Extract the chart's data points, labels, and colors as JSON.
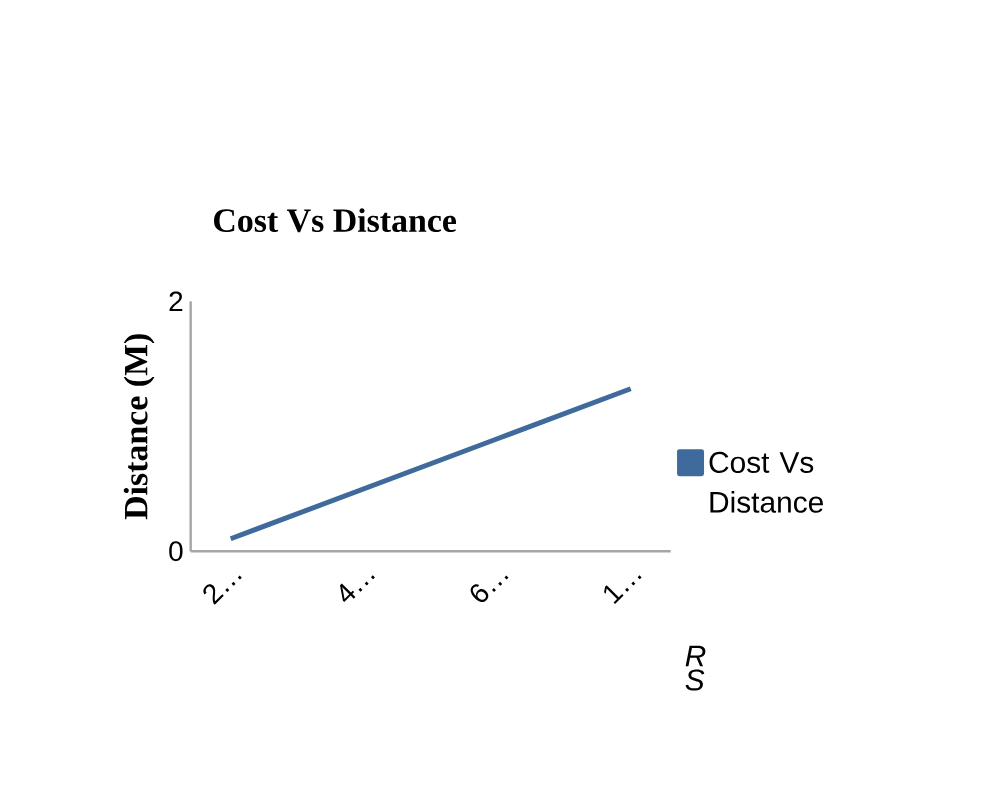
{
  "chart_data": {
    "type": "line",
    "title": "Cost Vs Distance",
    "ylabel": "Distance (M)",
    "xlabel": "R S",
    "categories": [
      "2…",
      "4…",
      "6…",
      "1…"
    ],
    "series": [
      {
        "name": "Cost Vs Distance",
        "color": "#3f6a9c",
        "values": [
          0.1,
          0.5,
          0.9,
          1.3
        ]
      }
    ],
    "ylim": [
      0,
      2
    ],
    "yticks": [
      0,
      2
    ],
    "legend": "right",
    "marker": "none",
    "line_style": "solid"
  }
}
